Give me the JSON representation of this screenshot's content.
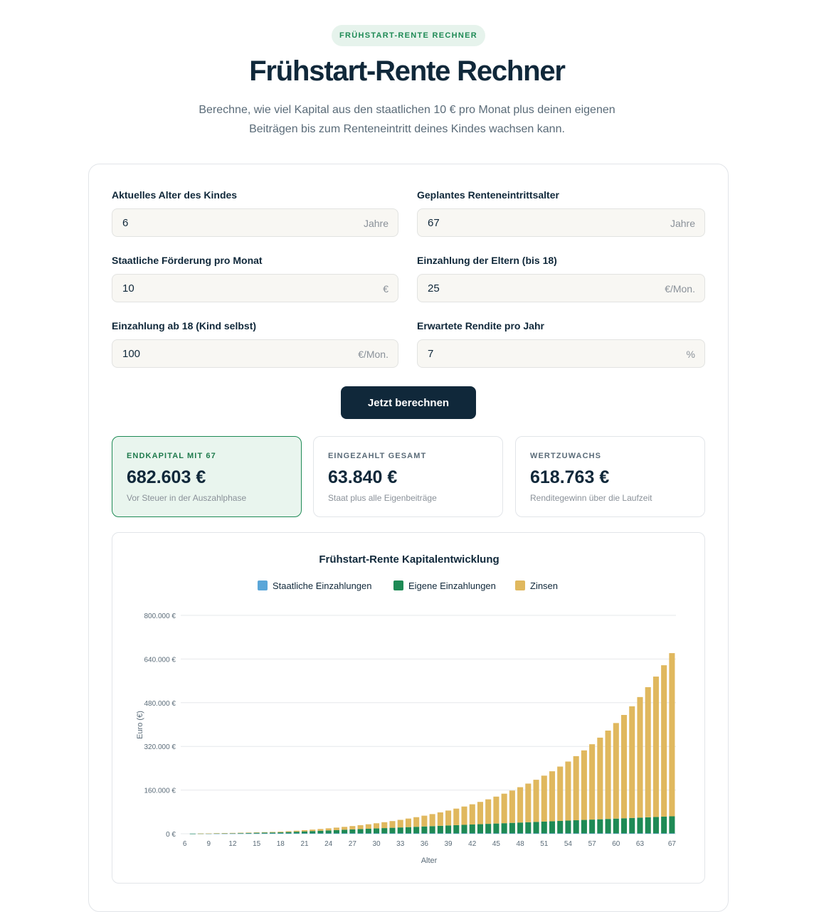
{
  "header": {
    "badge": "FRÜHSTART-RENTE RECHNER",
    "title": "Frühstart-Rente Rechner",
    "subtitle": "Berechne, wie viel Kapital aus den staatlichen 10 € pro Monat plus deinen eigenen Beiträgen bis zum Renteneintritt deines Kindes wachsen kann."
  },
  "form": {
    "child_age": {
      "label": "Aktuelles Alter des Kindes",
      "value": "6",
      "unit": "Jahre"
    },
    "retirement_age": {
      "label": "Geplantes Renteneintrittsalter",
      "value": "67",
      "unit": "Jahre"
    },
    "state_subsidy": {
      "label": "Staatliche Förderung pro Monat",
      "value": "10",
      "unit": "€"
    },
    "parent_payment": {
      "label": "Einzahlung der Eltern (bis 18)",
      "value": "25",
      "unit": "€/Mon."
    },
    "own_payment": {
      "label": "Einzahlung ab 18 (Kind selbst)",
      "value": "100",
      "unit": "€/Mon."
    },
    "expected_return": {
      "label": "Erwartete Rendite pro Jahr",
      "value": "7",
      "unit": "%"
    },
    "submit_label": "Jetzt berechnen"
  },
  "results": {
    "final": {
      "label": "ENDKAPITAL MIT 67",
      "value": "682.603 €",
      "note": "Vor Steuer in der Auszahlphase"
    },
    "paid": {
      "label": "EINGEZAHLT GESAMT",
      "value": "63.840 €",
      "note": "Staat plus alle Eigenbeiträge"
    },
    "growth": {
      "label": "WERTZUWACHS",
      "value": "618.763 €",
      "note": "Renditegewinn über die Laufzeit"
    }
  },
  "colors": {
    "accent": "#1e8a55",
    "navy": "#10283a",
    "state": "#5aa6d8",
    "own": "#1e8a55",
    "interest": "#e0b85e"
  },
  "chart_data": {
    "type": "bar",
    "stacked": true,
    "title": "Frühstart-Rente Kapitalentwicklung",
    "xlabel": "Alter",
    "ylabel": "Euro (€)",
    "ylim": [
      0,
      800000
    ],
    "yticks": [
      "0 €",
      "160.000 €",
      "320.000 €",
      "480.000 €",
      "640.000 €",
      "800.000 €"
    ],
    "yticks_values": [
      0,
      160000,
      320000,
      480000,
      640000,
      800000
    ],
    "xticks": [
      "6",
      "9",
      "12",
      "15",
      "18",
      "21",
      "24",
      "27",
      "30",
      "33",
      "36",
      "39",
      "42",
      "45",
      "48",
      "51",
      "54",
      "57",
      "60",
      "63",
      "67"
    ],
    "legend": [
      "Staatliche Einzahlungen",
      "Eigene Einzahlungen",
      "Zinsen"
    ],
    "legend_position": "top",
    "grid": true,
    "x_start": 6,
    "x_end": 67,
    "final_values": {
      "state_total": 7320,
      "own_total": 56520,
      "interest_total": 618763
    }
  }
}
